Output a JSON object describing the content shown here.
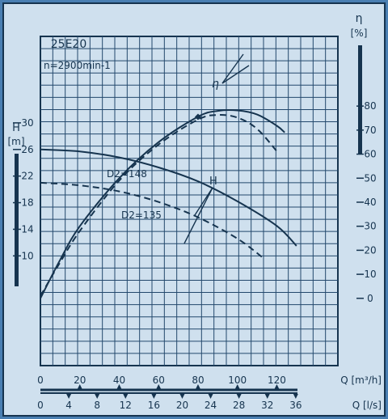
{
  "colors": {
    "background": "#4a7fb2",
    "paper": "#cfe0ee",
    "ink": "#16344f",
    "grid": "#23486c"
  },
  "chart_data": {
    "type": "line",
    "title": "25E20",
    "subtitle": "n=2900min-1",
    "x_axes": {
      "flow_m3h": {
        "label": "Q [m³/h]",
        "ticks": [
          0,
          20,
          40,
          60,
          80,
          100,
          120
        ],
        "range": [
          0,
          151
        ]
      },
      "flow_ls": {
        "label": "Q [l/s]",
        "ticks": [
          0,
          4,
          8,
          12,
          16,
          20,
          24,
          28,
          32,
          36
        ]
      }
    },
    "y_axes": {
      "head": {
        "label_symbol": "H",
        "label_unit": "[m]",
        "ticks": [
          10,
          14,
          18,
          22,
          26,
          30
        ],
        "range": [
          -6.5,
          43
        ]
      },
      "efficiency": {
        "label_symbol": "η",
        "label_unit": "[%]",
        "ticks": [
          0,
          10,
          20,
          30,
          40,
          50,
          60,
          70,
          80
        ],
        "range": [
          -28,
          109
        ]
      }
    },
    "grid": true,
    "annotations": {
      "efficiency": "η",
      "head": "H"
    },
    "series": [
      {
        "name": "D2=148",
        "quantity": "H",
        "axis": "head",
        "dash": false,
        "x": [
          0,
          20,
          40,
          60,
          80,
          100,
          120,
          130
        ],
        "y": [
          26,
          25.7,
          24.8,
          23.3,
          21.2,
          18.2,
          14.5,
          11.5
        ]
      },
      {
        "name": "D2=135",
        "quantity": "H",
        "axis": "head",
        "dash": true,
        "x": [
          0,
          20,
          40,
          60,
          80,
          100,
          113
        ],
        "y": [
          21,
          20.6,
          19.7,
          18.1,
          15.8,
          12.6,
          9.7
        ]
      },
      {
        "quantity": "η",
        "axis": "efficiency",
        "dash": false,
        "x": [
          0,
          10,
          20,
          40,
          60,
          80,
          90,
          100,
          110,
          120,
          124
        ],
        "y": [
          0,
          16,
          30,
          50,
          65,
          75.6,
          78,
          78.2,
          76.5,
          71.8,
          69
        ]
      },
      {
        "quantity": "η",
        "axis": "efficiency",
        "dash": true,
        "x": [
          0,
          10,
          20,
          40,
          60,
          80,
          90,
          100,
          110,
          120
        ],
        "y": [
          1,
          15,
          28,
          49,
          64,
          74.4,
          76.3,
          75.2,
          70.5,
          61.2
        ]
      }
    ]
  }
}
